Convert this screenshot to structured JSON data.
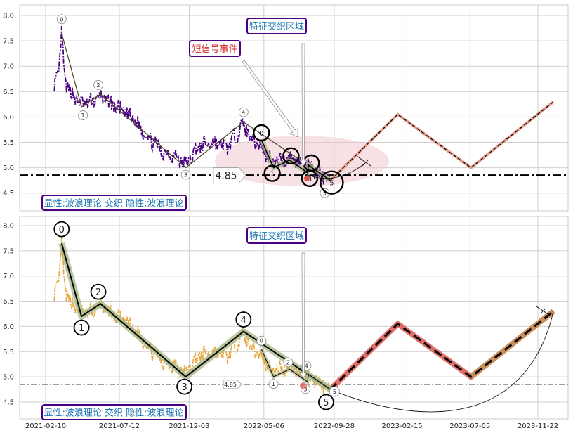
{
  "chart_data": {
    "type": "line",
    "x_tick_labels": [
      "2021-02-10",
      "2021-07-12",
      "2021-12-03",
      "2022-05-06",
      "2022-09-28",
      "2023-02-15",
      "2023-07-05",
      "2023-11-22"
    ],
    "y_tick_labels": [
      "8.0",
      "7.5",
      "7.0",
      "6.5",
      "6.0",
      "5.5",
      "5.0",
      "4.5"
    ],
    "ylim": [
      4.2,
      8.2
    ],
    "grid": true,
    "colors": {
      "price_top": "#4b0082",
      "price_bottom": "#e8a63a",
      "wave_line": "#000000",
      "wave_band": "#a8b98a",
      "ellipse": "#f2c9cd",
      "projection_top": "#e8a090",
      "projection_bottom_band": "#d9534f",
      "label_text": "#1f77b4",
      "label_border": "#4b0082",
      "hline": "#000000"
    },
    "level_value": 4.85,
    "level_label": "4.85",
    "annotations": {
      "feature_zone": "特征交织区域",
      "short_signal": "短信号事件",
      "legend_caption": "显性:波浪理论 交织 隐性:波浪理论"
    },
    "wave_points": [
      {
        "label": "0",
        "date": "2021-03-15",
        "value": 7.65
      },
      {
        "label": "1",
        "date": "2021-04-25",
        "value": 6.2
      },
      {
        "label": "2",
        "date": "2021-06-03",
        "value": 6.45
      },
      {
        "label": "3",
        "date": "2021-11-26",
        "value": 5.0
      },
      {
        "label": "4",
        "date": "2022-03-25",
        "value": 5.9
      },
      {
        "label": "5",
        "date": "2022-09-20",
        "value": 4.75
      }
    ],
    "sub_wave_points": [
      {
        "label": "0",
        "date": "2022-05-01",
        "value": 5.55
      },
      {
        "label": "1",
        "date": "2022-05-26",
        "value": 5.0
      },
      {
        "label": "2",
        "date": "2022-06-28",
        "value": 5.15
      },
      {
        "label": "3",
        "date": "2022-08-04",
        "value": 4.9
      },
      {
        "label": "4",
        "date": "2022-08-06",
        "value": 5.05
      },
      {
        "label": "5",
        "date": "2022-09-20",
        "value": 4.75
      }
    ],
    "projection_points": [
      {
        "date": "2022-09-20",
        "value": 4.75
      },
      {
        "date": "2023-02-06",
        "value": 6.05
      },
      {
        "date": "2023-07-07",
        "value": 5.0
      },
      {
        "date": "2023-12-24",
        "value": 6.3
      }
    ],
    "price_series": {
      "start_date": "2021-02-28",
      "end_date": "2022-09-20",
      "anchors": [
        {
          "date": "2021-02-28",
          "value": 6.6
        },
        {
          "date": "2021-03-10",
          "value": 6.95
        },
        {
          "date": "2021-03-15",
          "value": 7.62
        },
        {
          "date": "2021-03-22",
          "value": 6.7
        },
        {
          "date": "2021-04-05",
          "value": 6.45
        },
        {
          "date": "2021-04-25",
          "value": 6.25
        },
        {
          "date": "2021-05-15",
          "value": 6.3
        },
        {
          "date": "2021-06-03",
          "value": 6.4
        },
        {
          "date": "2021-07-05",
          "value": 6.2
        },
        {
          "date": "2021-08-10",
          "value": 5.95
        },
        {
          "date": "2021-09-10",
          "value": 5.6
        },
        {
          "date": "2021-10-10",
          "value": 5.3
        },
        {
          "date": "2021-11-01",
          "value": 5.25
        },
        {
          "date": "2021-11-26",
          "value": 5.05
        },
        {
          "date": "2021-12-20",
          "value": 5.4
        },
        {
          "date": "2022-01-20",
          "value": 5.5
        },
        {
          "date": "2022-02-20",
          "value": 5.4
        },
        {
          "date": "2022-03-10",
          "value": 5.65
        },
        {
          "date": "2022-03-25",
          "value": 5.85
        },
        {
          "date": "2022-04-15",
          "value": 5.55
        },
        {
          "date": "2022-05-01",
          "value": 5.4
        },
        {
          "date": "2022-05-26",
          "value": 5.1
        },
        {
          "date": "2022-06-28",
          "value": 5.2
        },
        {
          "date": "2022-08-04",
          "value": 5.0
        },
        {
          "date": "2022-09-20",
          "value": 4.78
        }
      ]
    }
  }
}
